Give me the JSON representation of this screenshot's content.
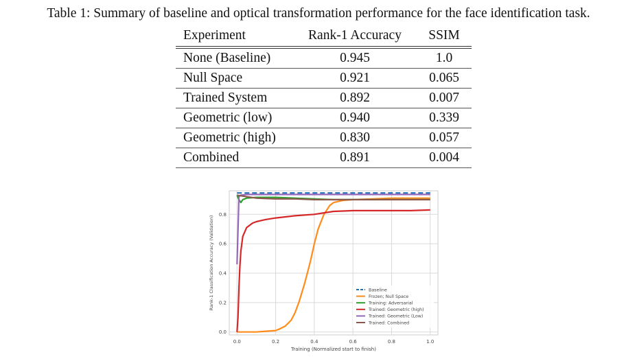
{
  "caption": "Table 1: Summary of baseline and optical transformation performance for the face identification task.",
  "table": {
    "headers": [
      "Experiment",
      "Rank-1 Accuracy",
      "SSIM"
    ],
    "rows": [
      [
        "None (Baseline)",
        "0.945",
        "1.0"
      ],
      [
        "Null Space",
        "0.921",
        "0.065"
      ],
      [
        "Trained System",
        "0.892",
        "0.007"
      ],
      [
        "Geometric (low)",
        "0.940",
        "0.339"
      ],
      [
        "Geometric (high)",
        "0.830",
        "0.057"
      ],
      [
        "Combined",
        "0.891",
        "0.004"
      ]
    ]
  },
  "chart_data": {
    "type": "line",
    "title": "",
    "xlabel": "Training (Normalized start to finish)",
    "ylabel": "Rank-1 Classification Accuracy (Validation)",
    "xlim": [
      -0.04,
      1.04
    ],
    "ylim": [
      -0.02,
      0.96
    ],
    "xticks": [
      0.0,
      0.2,
      0.4,
      0.6,
      0.8,
      1.0
    ],
    "xtick_labels": [
      "0.0",
      "0.2",
      "0.4",
      "0.6",
      "0.8",
      "1.0"
    ],
    "yticks": [
      0.0,
      0.2,
      0.4,
      0.6,
      0.8
    ],
    "ytick_labels": [
      "0.0",
      "0.2",
      "0.4",
      "0.6",
      "0.8"
    ],
    "grid": true,
    "legend_position": "lower-right",
    "series": [
      {
        "name": "Baseline",
        "color": "#1f6fb4",
        "dashed": true,
        "x": [
          0.0,
          1.0
        ],
        "y": [
          0.945,
          0.945
        ]
      },
      {
        "name": "Frozen; Null Space",
        "color": "#ff8c1a",
        "dashed": false,
        "x": [
          0.0,
          0.1,
          0.15,
          0.2,
          0.22,
          0.25,
          0.28,
          0.3,
          0.32,
          0.35,
          0.38,
          0.4,
          0.42,
          0.45,
          0.48,
          0.5,
          0.55,
          0.6,
          0.7,
          0.8,
          0.9,
          1.0
        ],
        "y": [
          0.0,
          0.0,
          0.005,
          0.01,
          0.02,
          0.04,
          0.08,
          0.13,
          0.2,
          0.33,
          0.48,
          0.6,
          0.7,
          0.8,
          0.86,
          0.88,
          0.895,
          0.9,
          0.905,
          0.91,
          0.91,
          0.91
        ]
      },
      {
        "name": "Training: Adversarial",
        "color": "#2ca02c",
        "dashed": false,
        "x": [
          0.0,
          0.01,
          0.02,
          0.03,
          0.05,
          0.1,
          0.2,
          0.3,
          0.4,
          0.5,
          0.6,
          0.7,
          0.8,
          0.9,
          1.0
        ],
        "y": [
          0.93,
          0.9,
          0.88,
          0.9,
          0.91,
          0.915,
          0.915,
          0.91,
          0.905,
          0.9,
          0.9,
          0.9,
          0.9,
          0.9,
          0.9
        ]
      },
      {
        "name": "Trained: Geometric (high)",
        "color": "#d62728",
        "dashed": false,
        "x": [
          0.0,
          0.005,
          0.01,
          0.015,
          0.02,
          0.03,
          0.05,
          0.08,
          0.1,
          0.15,
          0.2,
          0.3,
          0.4,
          0.5,
          0.6,
          0.7,
          0.8,
          0.9,
          1.0
        ],
        "y": [
          0.0,
          0.1,
          0.3,
          0.45,
          0.55,
          0.65,
          0.71,
          0.74,
          0.75,
          0.765,
          0.775,
          0.79,
          0.8,
          0.82,
          0.825,
          0.825,
          0.825,
          0.825,
          0.83
        ]
      },
      {
        "name": "Trained: Geometric (Low)",
        "color": "#9467bd",
        "dashed": false,
        "x": [
          0.0,
          0.01,
          0.02,
          0.05,
          0.1,
          0.2,
          0.4,
          0.6,
          0.8,
          1.0
        ],
        "y": [
          0.46,
          0.92,
          0.93,
          0.935,
          0.935,
          0.935,
          0.935,
          0.935,
          0.935,
          0.935
        ]
      },
      {
        "name": "Trained: Combined",
        "color": "#8c564b",
        "dashed": false,
        "x": [
          0.0,
          0.05,
          0.1,
          0.2,
          0.3,
          0.4,
          0.5,
          0.6,
          0.7,
          0.8,
          0.9,
          1.0
        ],
        "y": [
          0.93,
          0.92,
          0.91,
          0.905,
          0.905,
          0.9,
          0.9,
          0.9,
          0.9,
          0.9,
          0.9,
          0.9
        ]
      }
    ]
  }
}
